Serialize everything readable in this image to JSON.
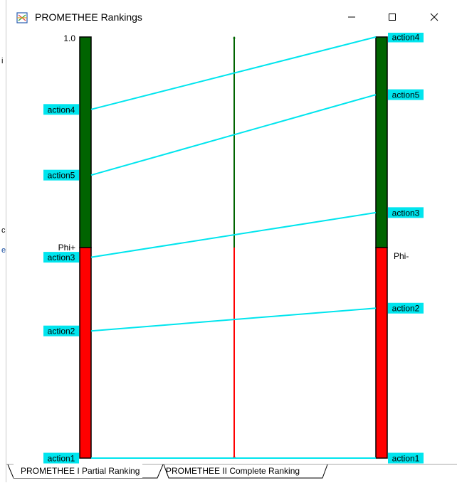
{
  "window": {
    "title": "PROMETHEE Rankings",
    "controls": {
      "minimize": "–",
      "maximize": "☐",
      "close": "✕"
    }
  },
  "chart_data": {
    "type": "promethee-ranking",
    "scale_top_label": "1.0",
    "left_axis_label": "Phi+",
    "right_axis_label": "Phi-",
    "colors": {
      "positive": "#006400",
      "negative": "#ff0000",
      "link": "#00e5ee",
      "label_bg": "#00e5ee"
    },
    "actions": [
      {
        "name": "action4",
        "phi_plus": 0.828,
        "phi_minus": 0.0
      },
      {
        "name": "action5",
        "phi_plus": 0.672,
        "phi_minus": 0.137
      },
      {
        "name": "action3",
        "phi_plus": 0.477,
        "phi_minus": 0.417
      },
      {
        "name": "action2",
        "phi_plus": 0.302,
        "phi_minus": 0.644
      },
      {
        "name": "action1",
        "phi_plus": 0.0,
        "phi_minus": 1.0
      }
    ],
    "phi_plus_split": 0.5,
    "phi_minus_split": 0.5,
    "center_split": 0.5
  },
  "tabs": [
    {
      "label": "PROMETHEE I Partial Ranking",
      "active": true
    },
    {
      "label": "PROMETHEE II Complete Ranking",
      "active": false
    }
  ],
  "left_edge_marks": [
    "i",
    "c",
    "e"
  ]
}
